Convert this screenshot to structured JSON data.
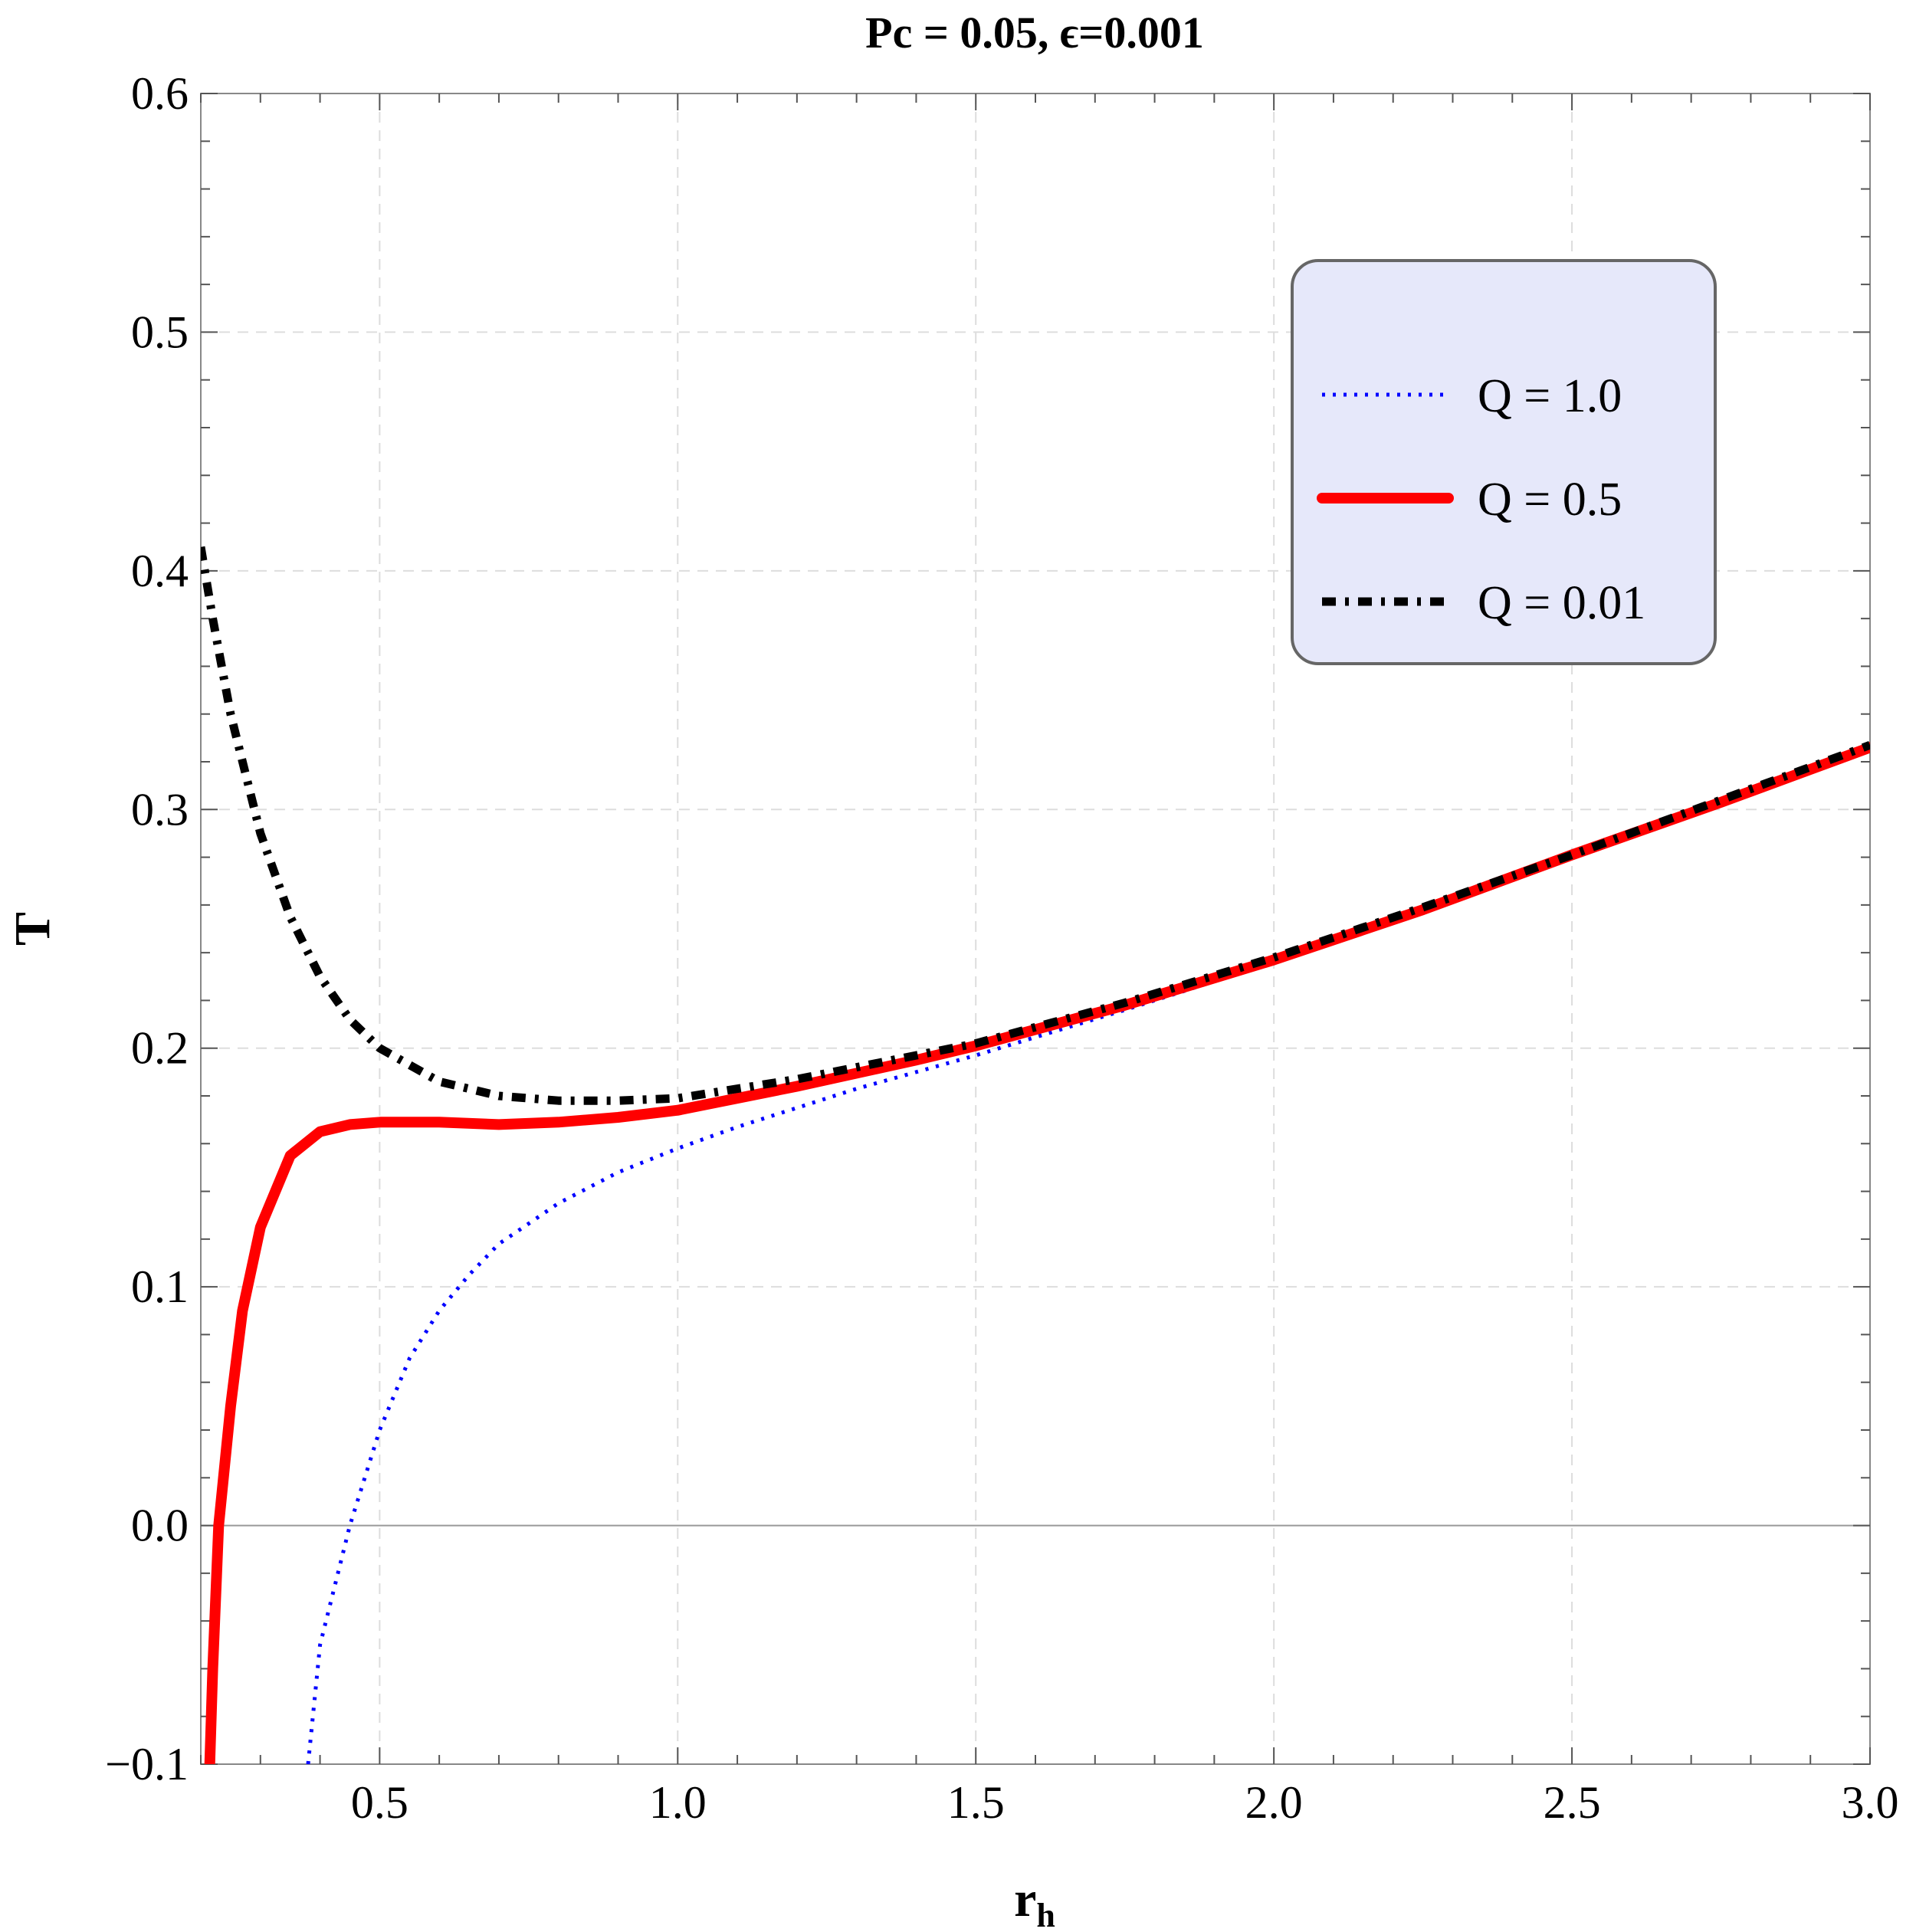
{
  "chart_data": {
    "type": "line",
    "title": "Pc = 0.05, ϵ=0.001",
    "xlabel": "r",
    "xlabel_sub": "h",
    "ylabel": "T",
    "xlim": [
      0.2,
      3.0
    ],
    "ylim": [
      -0.1,
      0.6
    ],
    "x_ticks": [
      0.5,
      1.0,
      1.5,
      2.0,
      2.5,
      3.0
    ],
    "x_tick_labels": [
      "0.5",
      "1.0",
      "1.5",
      "2.0",
      "2.5",
      "3.0"
    ],
    "y_ticks": [
      -0.1,
      0.0,
      0.1,
      0.2,
      0.3,
      0.4,
      0.5,
      0.6
    ],
    "y_tick_labels": [
      "−0.1",
      "0.0",
      "0.1",
      "0.2",
      "0.3",
      "0.4",
      "0.5",
      "0.6"
    ],
    "grid": true,
    "legend_position": "top-right",
    "series": [
      {
        "name": "Q = 1.0",
        "color": "#0000ff",
        "style": "dotted",
        "points": [
          [
            0.38,
            -0.1
          ],
          [
            0.4,
            -0.05
          ],
          [
            0.45,
            0.0
          ],
          [
            0.5,
            0.04
          ],
          [
            0.55,
            0.07
          ],
          [
            0.6,
            0.09
          ],
          [
            0.65,
            0.105
          ],
          [
            0.7,
            0.118
          ],
          [
            0.8,
            0.135
          ],
          [
            0.9,
            0.148
          ],
          [
            1.0,
            0.158
          ],
          [
            1.1,
            0.167
          ],
          [
            1.2,
            0.175
          ],
          [
            1.3,
            0.183
          ],
          [
            1.4,
            0.19
          ],
          [
            1.5,
            0.197
          ],
          [
            1.75,
            0.216
          ],
          [
            2.0,
            0.236
          ],
          [
            2.25,
            0.258
          ],
          [
            2.5,
            0.28
          ],
          [
            2.75,
            0.302
          ],
          [
            3.0,
            0.325
          ]
        ]
      },
      {
        "name": "Q = 0.5",
        "color": "#ff0000",
        "style": "solid",
        "points": [
          [
            0.215,
            -0.1
          ],
          [
            0.22,
            -0.06
          ],
          [
            0.23,
            0.0
          ],
          [
            0.25,
            0.05
          ],
          [
            0.27,
            0.09
          ],
          [
            0.3,
            0.125
          ],
          [
            0.35,
            0.155
          ],
          [
            0.4,
            0.165
          ],
          [
            0.45,
            0.168
          ],
          [
            0.5,
            0.169
          ],
          [
            0.6,
            0.169
          ],
          [
            0.7,
            0.168
          ],
          [
            0.8,
            0.169
          ],
          [
            0.9,
            0.171
          ],
          [
            1.0,
            0.174
          ],
          [
            1.2,
            0.184
          ],
          [
            1.4,
            0.195
          ],
          [
            1.5,
            0.201
          ],
          [
            1.75,
            0.218
          ],
          [
            2.0,
            0.237
          ],
          [
            2.25,
            0.258
          ],
          [
            2.5,
            0.281
          ],
          [
            2.75,
            0.303
          ],
          [
            3.0,
            0.326
          ]
        ]
      },
      {
        "name": "Q = 0.01",
        "color": "#000000",
        "style": "dash-dot",
        "points": [
          [
            0.2,
            0.41
          ],
          [
            0.22,
            0.38
          ],
          [
            0.25,
            0.34
          ],
          [
            0.3,
            0.29
          ],
          [
            0.35,
            0.255
          ],
          [
            0.4,
            0.23
          ],
          [
            0.45,
            0.212
          ],
          [
            0.5,
            0.2
          ],
          [
            0.6,
            0.186
          ],
          [
            0.7,
            0.18
          ],
          [
            0.8,
            0.178
          ],
          [
            0.9,
            0.178
          ],
          [
            1.0,
            0.179
          ],
          [
            1.2,
            0.187
          ],
          [
            1.4,
            0.197
          ],
          [
            1.5,
            0.202
          ],
          [
            1.75,
            0.219
          ],
          [
            2.0,
            0.238
          ],
          [
            2.25,
            0.259
          ],
          [
            2.5,
            0.281
          ],
          [
            2.75,
            0.304
          ],
          [
            3.0,
            0.327
          ]
        ]
      }
    ]
  }
}
